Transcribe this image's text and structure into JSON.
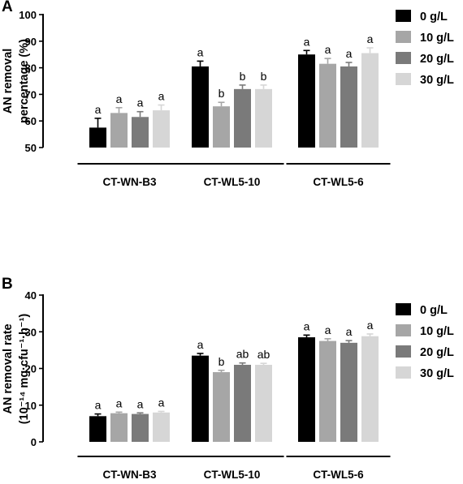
{
  "colors": {
    "series": [
      "#000000",
      "#a6a6a6",
      "#7a7a7a",
      "#d6d6d6"
    ],
    "axis": "#000000",
    "background": "#ffffff"
  },
  "legend_labels": [
    "0 g/L",
    "10 g/L",
    "20 g/L",
    "30 g/L"
  ],
  "chart_data": [
    {
      "panel_label": "A",
      "type": "bar",
      "groups": [
        "CT-WN-B3",
        "CT-WL5-10",
        "CT-WL5-6"
      ],
      "ylabel_lines": [
        "AN removal",
        "percentage (%)"
      ],
      "ylim": [
        50,
        100
      ],
      "yticks": [
        50,
        60,
        70,
        80,
        90,
        100
      ],
      "grid": false,
      "legend_position": "right",
      "series": [
        {
          "name": "0 g/L",
          "values": [
            57.5,
            80.5,
            85.0
          ],
          "errors": [
            3.5,
            2.0,
            1.5
          ],
          "letters": [
            "a",
            "a",
            "a"
          ]
        },
        {
          "name": "10 g/L",
          "values": [
            63.0,
            65.5,
            81.5
          ],
          "errors": [
            2.0,
            1.5,
            2.0
          ],
          "letters": [
            "a",
            "b",
            "a"
          ]
        },
        {
          "name": "20 g/L",
          "values": [
            61.5,
            72.0,
            80.5
          ],
          "errors": [
            2.0,
            1.5,
            1.5
          ],
          "letters": [
            "a",
            "b",
            "a"
          ]
        },
        {
          "name": "30 g/L",
          "values": [
            64.0,
            72.0,
            85.5
          ],
          "errors": [
            2.0,
            1.5,
            2.0
          ],
          "letters": [
            "a",
            "b",
            "a"
          ]
        }
      ]
    },
    {
      "panel_label": "B",
      "type": "bar",
      "groups": [
        "CT-WN-B3",
        "CT-WL5-10",
        "CT-WL5-6"
      ],
      "ylabel_lines": [
        "AN removal rate",
        "(10⁻¹⁴ mg·cfu⁻¹·h⁻¹)"
      ],
      "ylim": [
        0,
        40
      ],
      "yticks": [
        0,
        10,
        20,
        30,
        40
      ],
      "grid": false,
      "legend_position": "right",
      "series": [
        {
          "name": "0 g/L",
          "values": [
            7.0,
            23.5,
            28.5
          ],
          "errors": [
            0.6,
            0.6,
            0.6
          ],
          "letters": [
            "a",
            "a",
            "a"
          ]
        },
        {
          "name": "10 g/L",
          "values": [
            7.8,
            19.0,
            27.5
          ],
          "errors": [
            0.3,
            0.5,
            0.6
          ],
          "letters": [
            "a",
            "b",
            "a"
          ]
        },
        {
          "name": "20 g/L",
          "values": [
            7.6,
            21.0,
            27.0
          ],
          "errors": [
            0.3,
            0.5,
            0.6
          ],
          "letters": [
            "a",
            "ab",
            "a"
          ]
        },
        {
          "name": "30 g/L",
          "values": [
            8.0,
            21.0,
            28.8
          ],
          "errors": [
            0.3,
            0.4,
            0.6
          ],
          "letters": [
            "a",
            "ab",
            "a"
          ]
        }
      ]
    }
  ]
}
